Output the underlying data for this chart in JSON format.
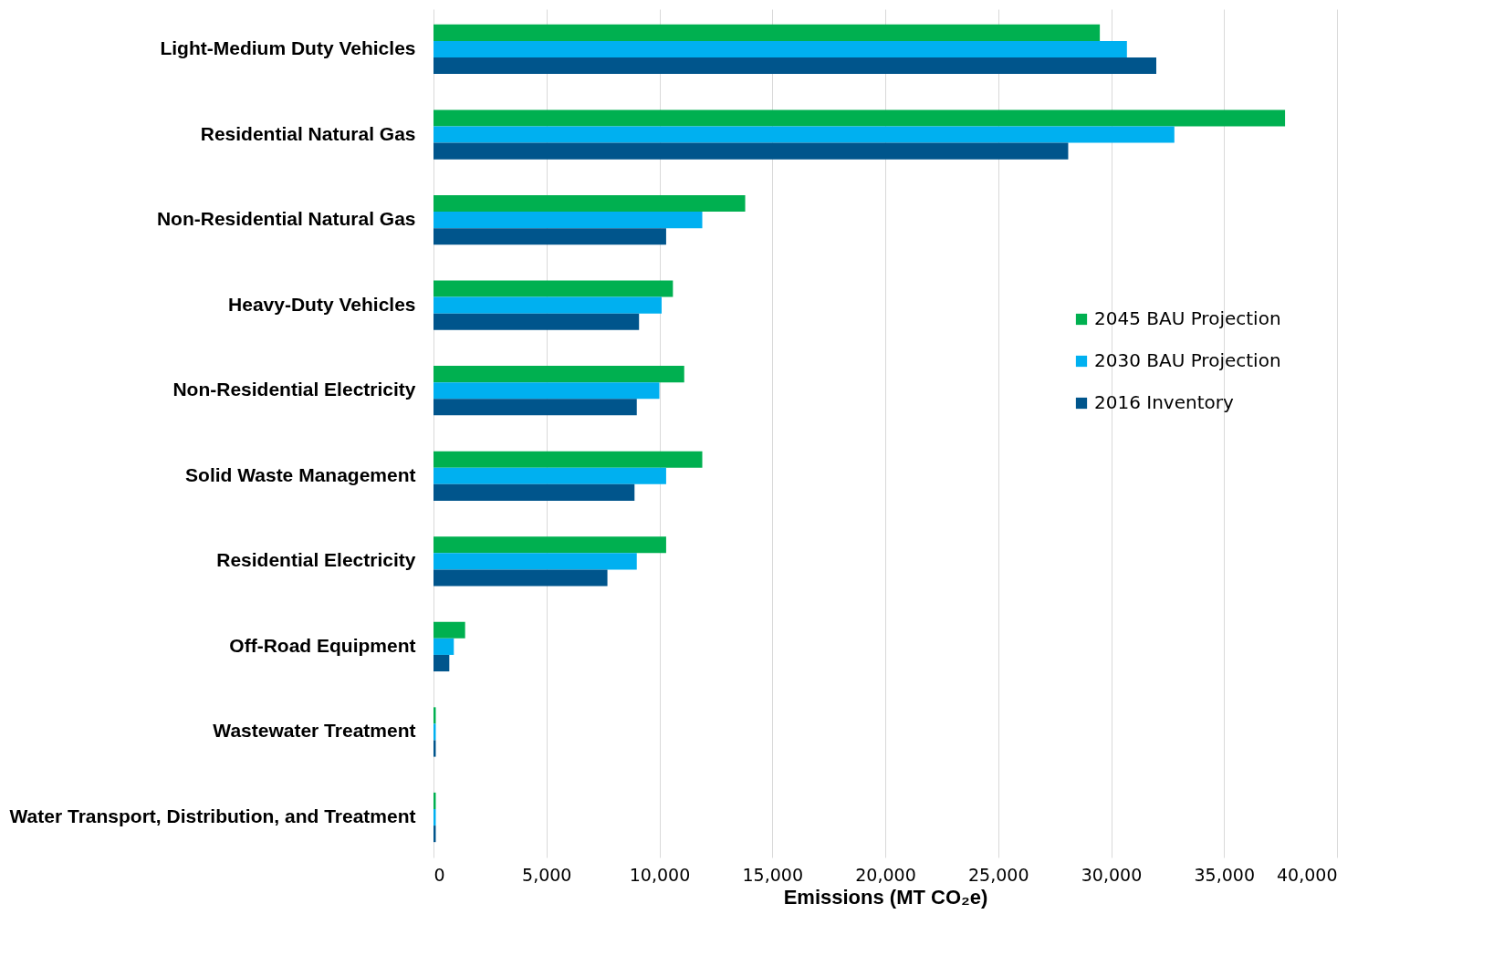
{
  "chart_data": {
    "type": "bar",
    "orientation": "horizontal",
    "xlabel": "Emissions (MT CO₂e)",
    "categories": [
      "Light-Medium Duty Vehicles",
      "Residential Natural Gas",
      "Non-Residential Natural Gas",
      "Heavy-Duty Vehicles",
      "Non-Residential Electricity",
      "Solid Waste Management",
      "Residential Electricity",
      "Off-Road Equipment",
      "Wastewater Treatment",
      "Water Transport, Distribution, and Treatment"
    ],
    "series": [
      {
        "name": "2045 BAU Projection",
        "color": "#00b050",
        "values": [
          29500,
          37700,
          13800,
          10600,
          11100,
          11900,
          10300,
          1400,
          100,
          100
        ]
      },
      {
        "name": "2030 BAU Projection",
        "color": "#00b0f0",
        "values": [
          30700,
          32800,
          11900,
          10100,
          10000,
          10300,
          9000,
          900,
          100,
          100
        ]
      },
      {
        "name": "2016 Inventory",
        "color": "#00558c",
        "values": [
          32000,
          28100,
          10300,
          9100,
          9000,
          8900,
          7700,
          700,
          100,
          100
        ]
      }
    ],
    "xlim": [
      0,
      40000
    ],
    "xticks": [
      0,
      {
        "value": 5000,
        "label": "5,000"
      },
      {
        "value": 10000,
        "label": "10,000"
      },
      {
        "value": 15000,
        "label": "15,000"
      },
      {
        "value": 20000,
        "label": "20,000"
      },
      {
        "value": 25000,
        "label": "25,000"
      },
      {
        "value": 30000,
        "label": "30,000"
      },
      {
        "value": 35000,
        "label": "35,000"
      },
      {
        "value": 40000,
        "label": "40,000"
      }
    ],
    "grid": "x",
    "legend": "right"
  }
}
